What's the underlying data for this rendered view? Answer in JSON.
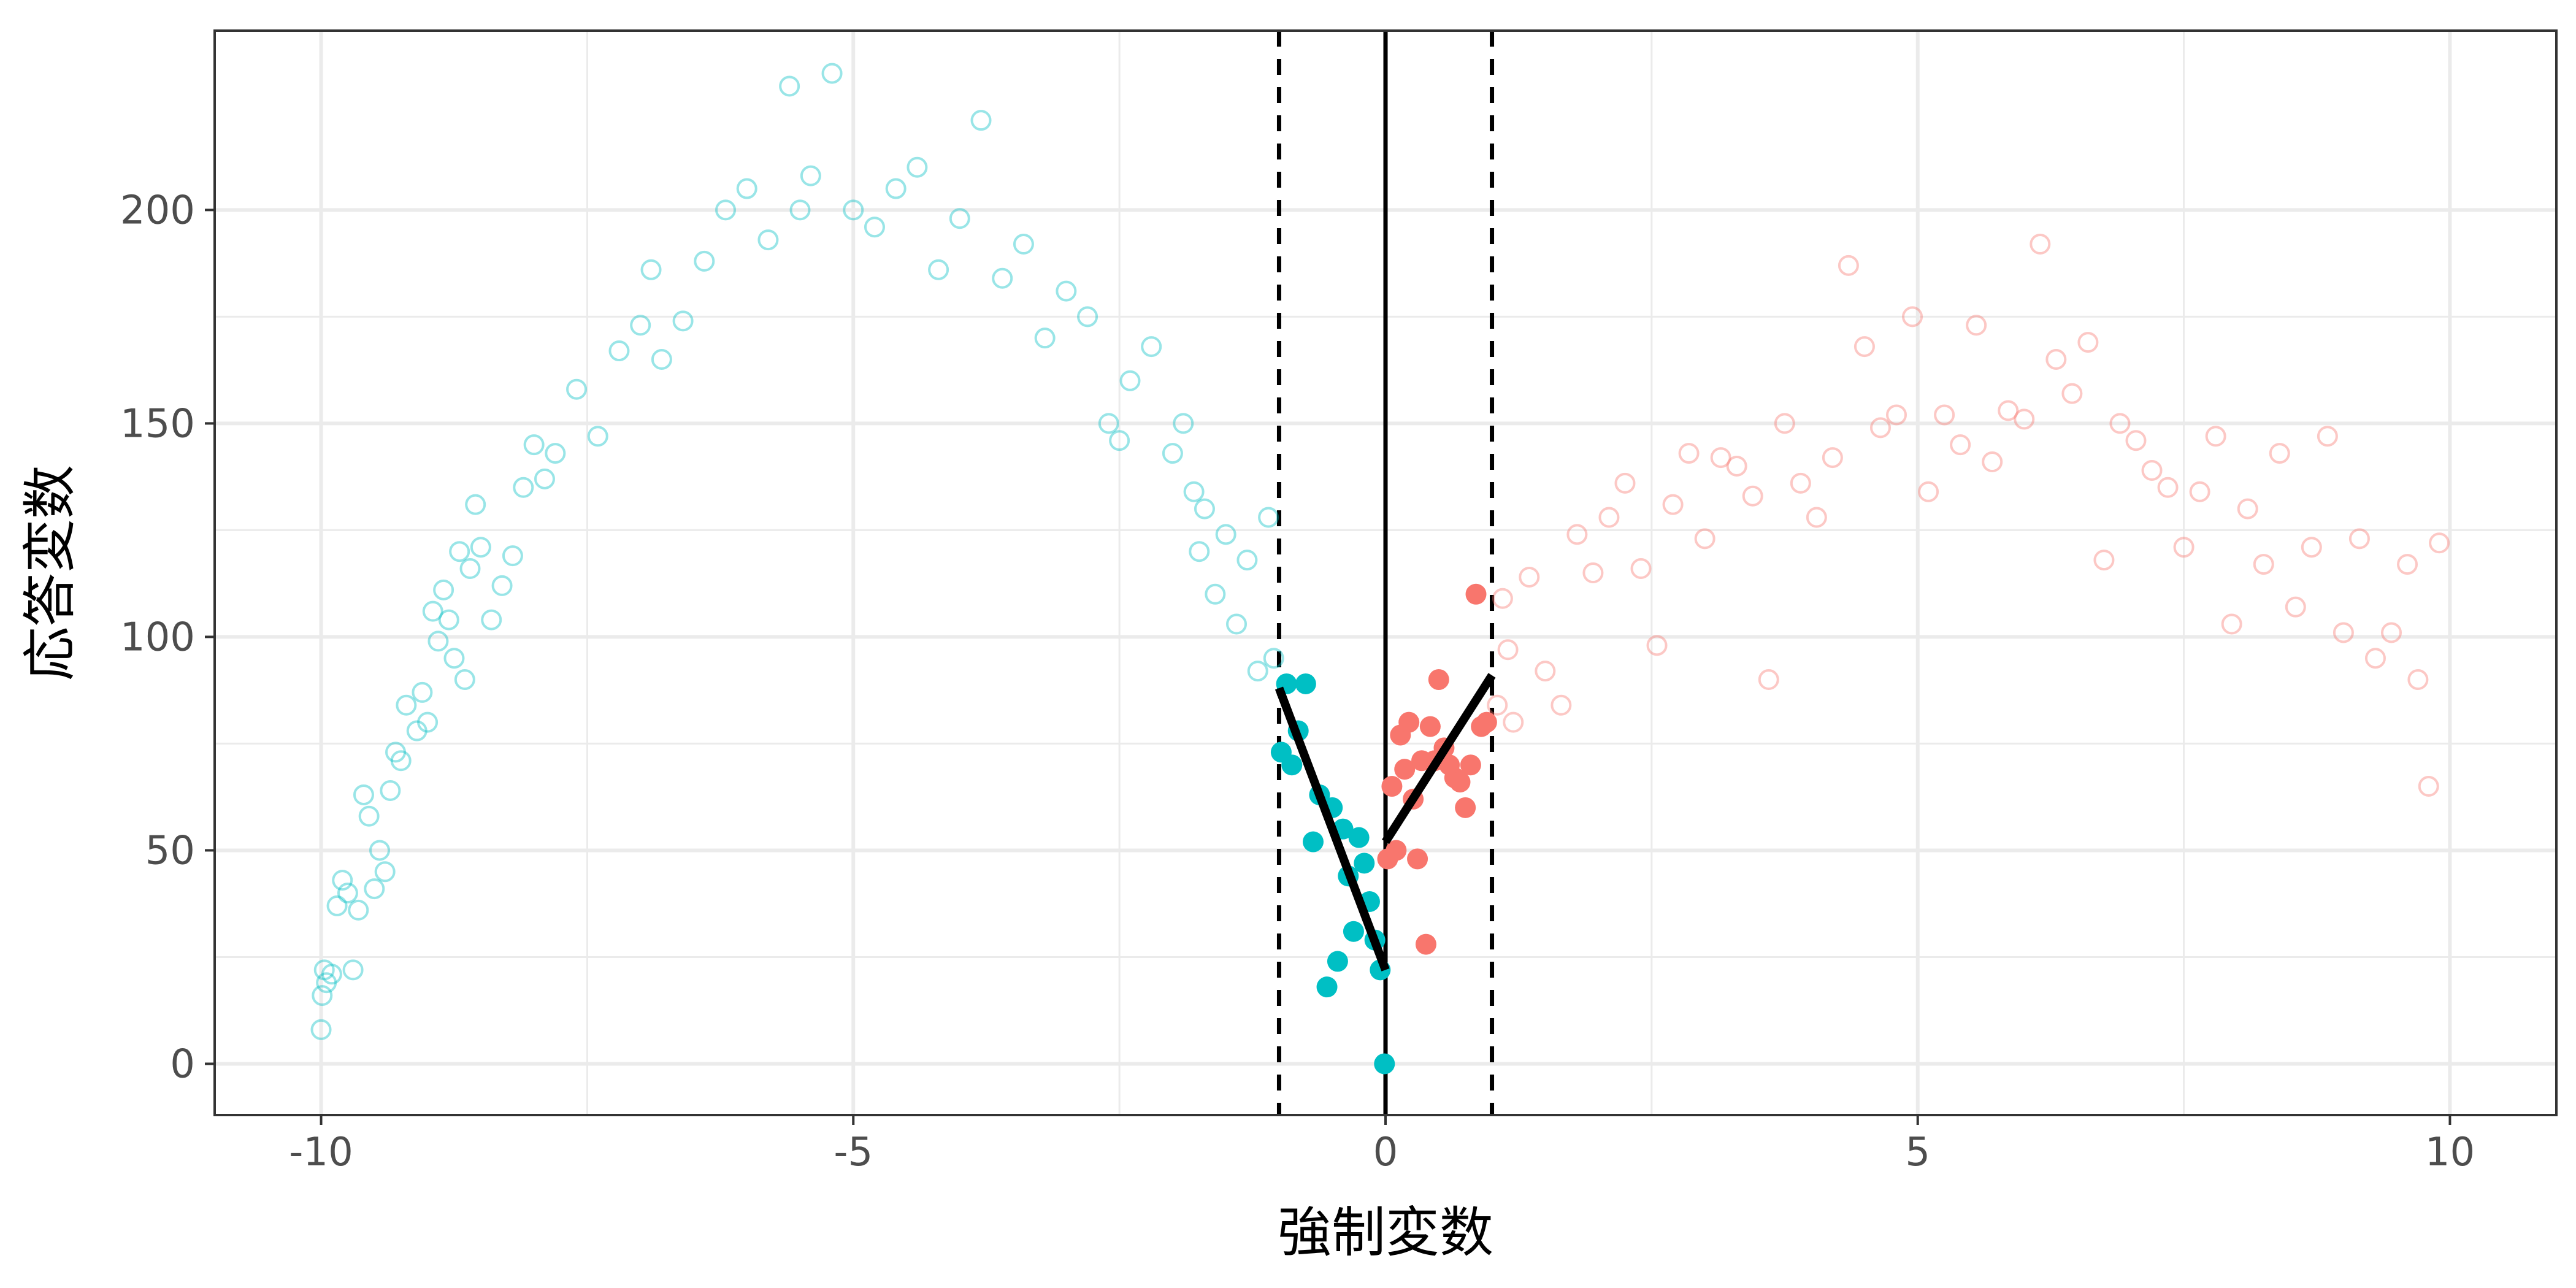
{
  "chart_data": {
    "type": "scatter",
    "xlabel": "強制変数",
    "ylabel": "応答変数",
    "xlim": [
      -11,
      11
    ],
    "ylim": [
      -12,
      242
    ],
    "x_ticks": [
      -10,
      -5,
      0,
      5,
      10
    ],
    "x_tick_labels": [
      "-10",
      "-5",
      "0",
      "5",
      "10"
    ],
    "y_ticks": [
      0,
      50,
      100,
      150,
      200
    ],
    "y_tick_labels": [
      "0",
      "50",
      "100",
      "150",
      "200"
    ],
    "grid": true,
    "colors": {
      "left": "#00BFC4",
      "right": "#F8766D",
      "lines": "#000000",
      "panel_border": "#333333",
      "grid": "#EBEBEB"
    },
    "cutoff": 0,
    "bandwidth": [
      -1,
      1
    ],
    "fits": [
      {
        "x": [
          -1.0,
          0.0
        ],
        "y": [
          88,
          22
        ]
      },
      {
        "x": [
          0.0,
          1.0
        ],
        "y": [
          52,
          91
        ]
      }
    ],
    "series": [
      {
        "group": "left-outside-bandwidth",
        "marker": "hollow-circle",
        "opacity": 0.4,
        "x": [
          -10.0,
          -9.99,
          -9.97,
          -9.95,
          -9.9,
          -9.85,
          -9.8,
          -9.75,
          -9.7,
          -9.65,
          -9.6,
          -9.55,
          -9.5,
          -9.45,
          -9.4,
          -9.35,
          -9.3,
          -9.25,
          -9.2,
          -9.1,
          -9.05,
          -9.0,
          -8.95,
          -8.9,
          -8.85,
          -8.8,
          -8.75,
          -8.7,
          -8.65,
          -8.6,
          -8.55,
          -8.5,
          -8.4,
          -8.3,
          -8.2,
          -8.1,
          -8.0,
          -7.9,
          -7.8,
          -7.6,
          -7.4,
          -7.2,
          -7.0,
          -6.9,
          -6.8,
          -6.6,
          -6.4,
          -6.2,
          -6.0,
          -5.8,
          -5.6,
          -5.5,
          -5.4,
          -5.2,
          -5.0,
          -4.8,
          -4.6,
          -4.4,
          -4.2,
          -4.0,
          -3.8,
          -3.6,
          -3.4,
          -3.2,
          -3.0,
          -2.8,
          -2.6,
          -2.5,
          -2.4,
          -2.2,
          -2.0,
          -1.9,
          -1.8,
          -1.75,
          -1.7,
          -1.6,
          -1.5,
          -1.4,
          -1.3,
          -1.2,
          -1.1,
          -1.05
        ],
        "y": [
          8,
          16,
          22,
          19,
          21,
          37,
          43,
          40,
          22,
          36,
          63,
          58,
          41,
          50,
          45,
          64,
          73,
          71,
          84,
          78,
          87,
          80,
          106,
          99,
          111,
          104,
          95,
          120,
          90,
          116,
          131,
          121,
          104,
          112,
          119,
          135,
          145,
          137,
          143,
          158,
          147,
          167,
          173,
          186,
          165,
          174,
          188,
          200,
          205,
          193,
          229,
          200,
          208,
          232,
          200,
          196,
          205,
          210,
          186,
          198,
          221,
          184,
          192,
          170,
          181,
          175,
          150,
          146,
          160,
          168,
          143,
          150,
          134,
          120,
          130,
          110,
          124,
          103,
          118,
          92,
          128,
          95
        ]
      },
      {
        "group": "left-inside-bandwidth",
        "marker": "filled-circle",
        "opacity": 1,
        "x": [
          -0.98,
          -0.93,
          -0.88,
          -0.82,
          -0.75,
          -0.68,
          -0.62,
          -0.55,
          -0.5,
          -0.45,
          -0.4,
          -0.35,
          -0.3,
          -0.25,
          -0.2,
          -0.15,
          -0.1,
          -0.05,
          -0.01
        ],
        "y": [
          73,
          89,
          70,
          78,
          89,
          52,
          63,
          18,
          60,
          24,
          55,
          44,
          31,
          53,
          47,
          38,
          29,
          22,
          0
        ]
      },
      {
        "group": "right-inside-bandwidth",
        "marker": "filled-circle",
        "opacity": 1,
        "x": [
          0.02,
          0.06,
          0.1,
          0.14,
          0.18,
          0.22,
          0.26,
          0.3,
          0.34,
          0.38,
          0.42,
          0.46,
          0.5,
          0.55,
          0.6,
          0.65,
          0.7,
          0.75,
          0.8,
          0.85,
          0.9,
          0.95
        ],
        "y": [
          48,
          65,
          50,
          77,
          69,
          80,
          62,
          48,
          71,
          28,
          79,
          71,
          90,
          74,
          70,
          67,
          66,
          60,
          70,
          110,
          79,
          80
        ]
      },
      {
        "group": "right-outside-bandwidth",
        "marker": "hollow-circle",
        "opacity": 0.4,
        "x": [
          1.05,
          1.1,
          1.15,
          1.2,
          1.35,
          1.5,
          1.65,
          1.8,
          1.95,
          2.1,
          2.25,
          2.4,
          2.55,
          2.7,
          2.85,
          3.0,
          3.15,
          3.3,
          3.45,
          3.6,
          3.75,
          3.9,
          4.05,
          4.2,
          4.35,
          4.5,
          4.65,
          4.8,
          4.95,
          5.1,
          5.25,
          5.4,
          5.55,
          5.7,
          5.85,
          6.0,
          6.15,
          6.3,
          6.45,
          6.6,
          6.75,
          6.9,
          7.05,
          7.2,
          7.35,
          7.5,
          7.65,
          7.8,
          7.95,
          8.1,
          8.25,
          8.4,
          8.55,
          8.7,
          8.85,
          9.0,
          9.15,
          9.3,
          9.45,
          9.6,
          9.7,
          9.8,
          9.9
        ],
        "y": [
          84,
          109,
          97,
          80,
          114,
          92,
          84,
          124,
          115,
          128,
          136,
          116,
          98,
          131,
          143,
          123,
          142,
          140,
          133,
          90,
          150,
          136,
          128,
          142,
          187,
          168,
          149,
          152,
          175,
          134,
          152,
          145,
          173,
          141,
          153,
          151,
          192,
          165,
          157,
          169,
          118,
          150,
          146,
          139,
          135,
          121,
          134,
          147,
          103,
          130,
          117,
          143,
          107,
          121,
          147,
          101,
          123,
          95,
          101,
          117,
          90,
          65,
          122
        ]
      }
    ]
  }
}
